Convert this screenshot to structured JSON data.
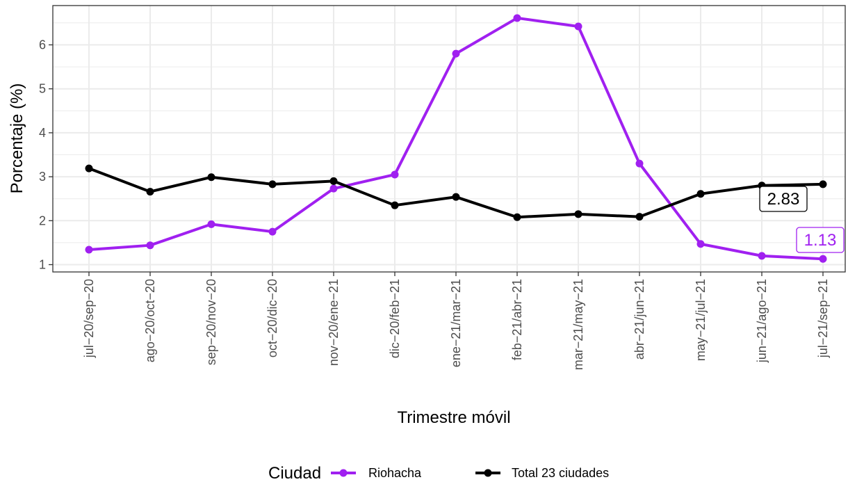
{
  "chart_data": {
    "type": "line",
    "xlabel": "Trimestre móvil",
    "ylabel": "Porcentaje (%)",
    "ylim": [
      0.85,
      6.85
    ],
    "yticks": [
      1,
      2,
      3,
      4,
      5,
      6
    ],
    "categories": [
      "jul−20/sep−20",
      "ago−20/oct−20",
      "sep−20/nov−20",
      "oct−20/dic−20",
      "nov−20/ene−21",
      "dic−20/feb−21",
      "ene−21/mar−21",
      "feb−21/abr−21",
      "mar−21/may−21",
      "abr−21/jun−21",
      "may−21/jul−21",
      "jun−21/ago−21",
      "jul−21/sep−21"
    ],
    "series": [
      {
        "name": "Riohacha",
        "color": "#a020f0",
        "values": [
          1.34,
          1.44,
          1.92,
          1.75,
          2.73,
          3.05,
          5.8,
          6.61,
          6.42,
          3.3,
          1.47,
          1.2,
          1.13
        ],
        "end_label": "1.13"
      },
      {
        "name": "Total 23 ciudades",
        "color": "#000000",
        "values": [
          3.19,
          2.66,
          2.99,
          2.83,
          2.9,
          2.35,
          2.54,
          2.08,
          2.15,
          2.09,
          2.61,
          2.8,
          2.83
        ],
        "end_label": "2.83"
      }
    ],
    "grid": true,
    "legend": {
      "title": "Ciudad",
      "position": "bottom"
    }
  }
}
